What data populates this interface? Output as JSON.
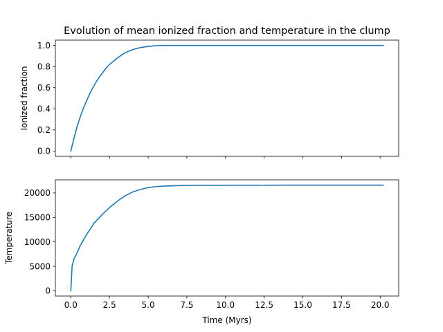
{
  "figure": {
    "title": "Evolution of mean ionized fraction and temperature in the clump",
    "line_color": "#1f77b4"
  },
  "chart_data": [
    {
      "type": "line",
      "title": "Evolution of mean ionized fraction and temperature in the clump",
      "xlabel": "",
      "ylabel": "Ionized fraction",
      "xlim": [
        -1.0,
        21.2
      ],
      "ylim": [
        -0.05,
        1.05
      ],
      "xticks": [
        0,
        2.5,
        5,
        7.5,
        10,
        12.5,
        15,
        17.5,
        20
      ],
      "xtick_labels": [],
      "yticks": [
        0.0,
        0.2,
        0.4,
        0.6,
        0.8,
        1.0
      ],
      "ytick_labels": [
        "0.0",
        "0.2",
        "0.4",
        "0.6",
        "0.8",
        "1.0"
      ],
      "grid": false,
      "series": [
        {
          "color": "#1f77b4",
          "x": [
            0,
            0.2,
            0.4,
            0.6,
            0.8,
            1.0,
            1.25,
            1.5,
            1.75,
            2.0,
            2.25,
            2.5,
            3.0,
            3.5,
            4.0,
            4.5,
            5.0,
            5.5,
            6.0,
            7.0,
            8.0,
            10.0,
            12.0,
            14.0,
            16.0,
            18.0,
            20.2
          ],
          "y": [
            0.0,
            0.12,
            0.23,
            0.32,
            0.4,
            0.47,
            0.55,
            0.62,
            0.68,
            0.73,
            0.78,
            0.82,
            0.88,
            0.93,
            0.96,
            0.98,
            0.99,
            0.997,
            1.0,
            1.0,
            1.0,
            1.0,
            1.0,
            1.0,
            1.0,
            1.0,
            1.0
          ]
        }
      ]
    },
    {
      "type": "line",
      "title": "",
      "xlabel": "Time (Myrs)",
      "ylabel": "Temperature",
      "xlim": [
        -1.0,
        21.2
      ],
      "ylim": [
        -1080,
        22680
      ],
      "xticks": [
        0,
        2.5,
        5,
        7.5,
        10,
        12.5,
        15,
        17.5,
        20
      ],
      "xtick_labels": [
        "0.0",
        "2.5",
        "5.0",
        "7.5",
        "10.0",
        "12.5",
        "15.0",
        "17.5",
        "20.0"
      ],
      "yticks": [
        0,
        5000,
        10000,
        15000,
        20000
      ],
      "ytick_labels": [
        "0",
        "5000",
        "10000",
        "15000",
        "20000"
      ],
      "grid": false,
      "series": [
        {
          "color": "#1f77b4",
          "x": [
            0,
            0.08,
            0.2,
            0.4,
            0.6,
            0.8,
            1.0,
            1.25,
            1.5,
            2.0,
            2.5,
            3.0,
            3.5,
            4.0,
            4.5,
            5.0,
            5.5,
            6.0,
            7.0,
            8.0,
            10.0,
            12.0,
            14.0,
            16.0,
            18.0,
            20.2
          ],
          "y": [
            0,
            5000,
            6500,
            7700,
            9200,
            10300,
            11400,
            12600,
            13800,
            15500,
            17000,
            18300,
            19400,
            20200,
            20700,
            21100,
            21300,
            21400,
            21500,
            21550,
            21570,
            21580,
            21590,
            21600,
            21600,
            21600
          ]
        }
      ]
    }
  ]
}
